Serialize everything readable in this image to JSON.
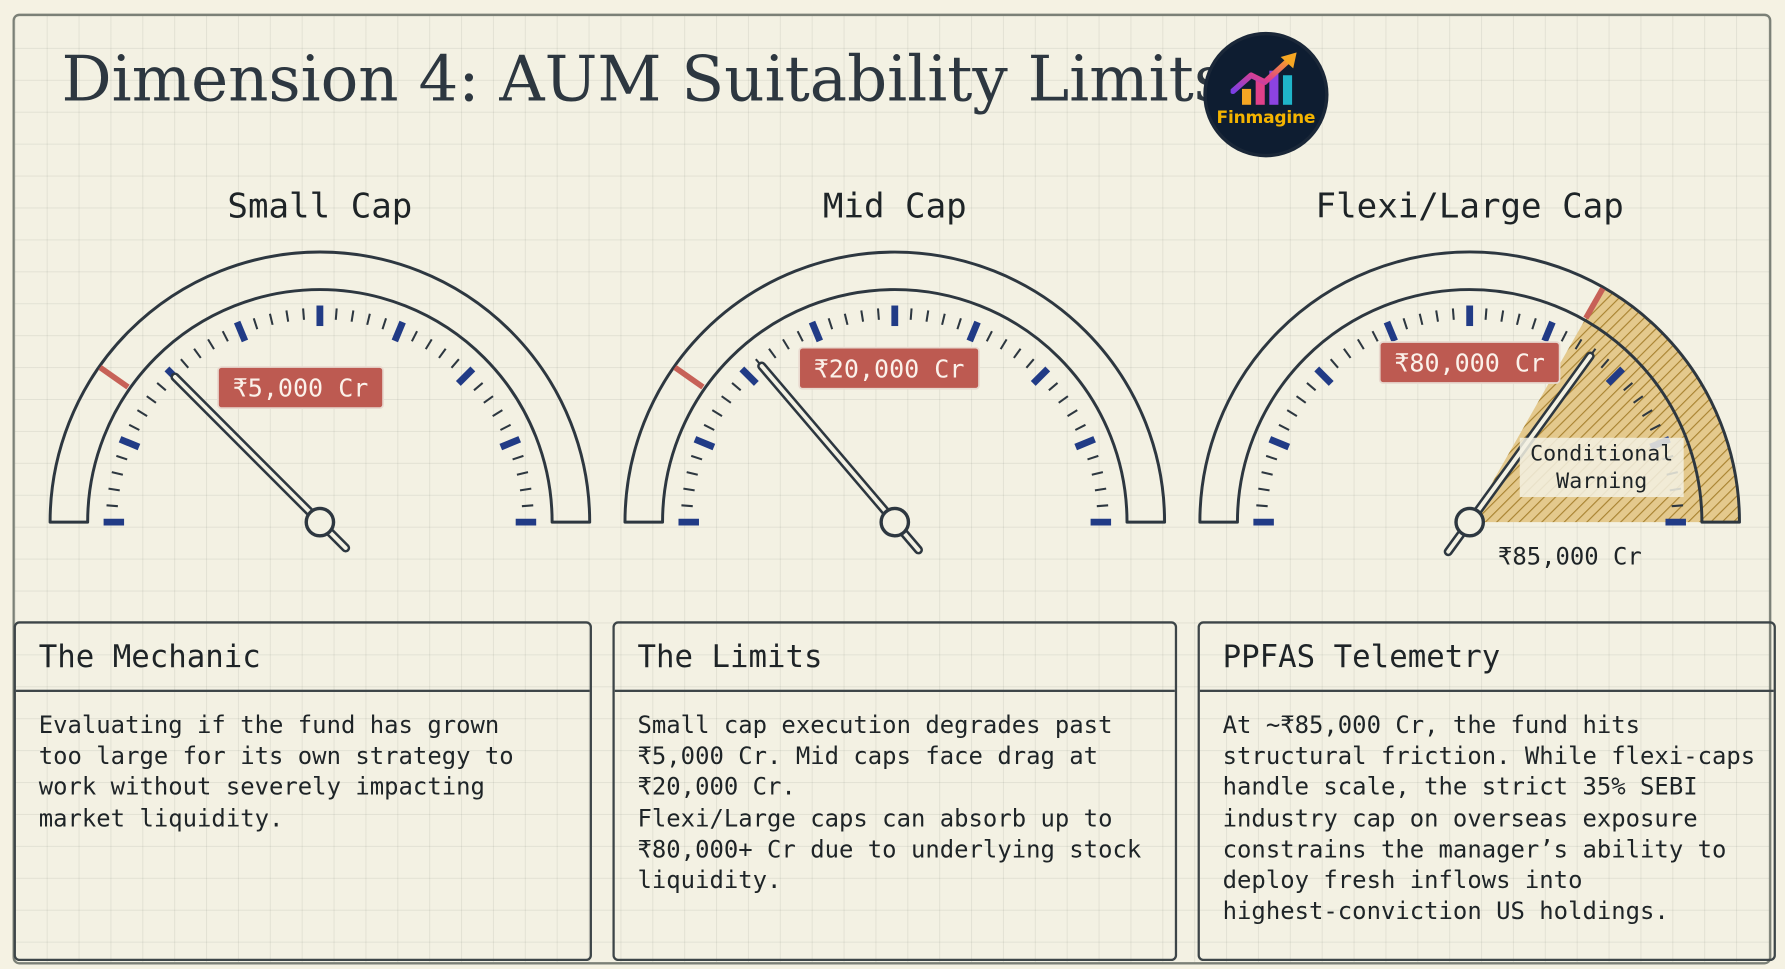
{
  "title": "Dimension 4: AUM Suitability Limits",
  "logo": {
    "text": "Finmagine",
    "icon": "growth-chart-icon"
  },
  "colors": {
    "background": "#f3f1e3",
    "ink": "#2d3740",
    "needle_label_fill": "#bd5a51",
    "major_tick": "#213b86",
    "danger_tick": "#c76157",
    "warning_hatch": "#c9a34b",
    "logo_bg": "#0e1d31",
    "logo_text": "#f4b400"
  },
  "gauges": [
    {
      "label": "Small Cap",
      "needle_label": "₹5,000 Cr",
      "needle_fraction": 0.25,
      "red_marker_fraction": 0.195
    },
    {
      "label": "Mid Cap",
      "needle_label": "₹20,000 Cr",
      "needle_fraction": 0.275,
      "red_marker_fraction": 0.195
    },
    {
      "label": "Flexi/Large Cap",
      "needle_label": "₹80,000 Cr",
      "needle_fraction": 0.7,
      "red_marker_fraction": 0.665,
      "warning_zone": {
        "from_fraction": 0.665,
        "to_fraction": 1.0,
        "label": "Conditional\nWarning"
      },
      "marker_label": "₹85,000 Cr"
    }
  ],
  "cards": [
    {
      "heading": "The Mechanic",
      "body": "Evaluating if the fund has grown\ntoo large for its own strategy to\nwork without severely impacting\nmarket liquidity."
    },
    {
      "heading": "The Limits",
      "body": "Small cap execution degrades past\n₹5,000 Cr. Mid caps face drag at\n₹20,000 Cr.\nFlexi/Large caps can absorb up to\n₹80,000+ Cr due to underlying stock\nliquidity."
    },
    {
      "heading": "PPFAS Telemetry",
      "body": "At ~₹85,000 Cr, the fund hits\nstructural friction. While flexi-caps\nhandle scale, the strict 35% SEBI\nindustry cap on overseas exposure\nconstrains the manager’s ability to\ndeploy fresh inflows into\nhighest-conviction US holdings."
    }
  ]
}
